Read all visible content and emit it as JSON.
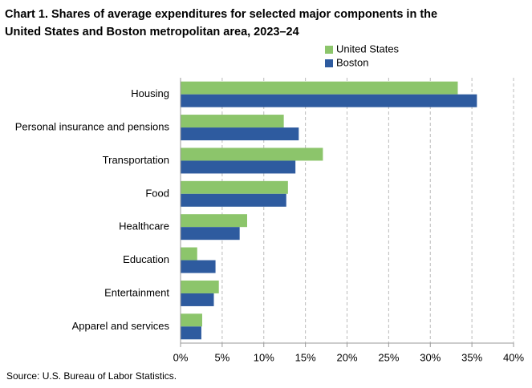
{
  "chart_data": {
    "type": "bar",
    "orientation": "horizontal",
    "title": [
      "Chart 1. Shares of average expenditures for selected major components in the",
      "United States and Boston metropolitan area, 2023–24"
    ],
    "categories": [
      "Housing",
      "Personal insurance and pensions",
      "Transportation",
      "Food",
      "Healthcare",
      "Education",
      "Entertainment",
      "Apparel and services"
    ],
    "series": [
      {
        "name": "United States",
        "color": "#8cc56b",
        "values": [
          33.3,
          12.4,
          17.1,
          12.9,
          8.0,
          2.0,
          4.6,
          2.6
        ]
      },
      {
        "name": "Boston",
        "color": "#2e5b9f",
        "values": [
          35.6,
          14.2,
          13.8,
          12.7,
          7.1,
          4.2,
          4.0,
          2.5
        ]
      }
    ],
    "xlim": [
      0,
      40
    ],
    "xticks": [
      {
        "value": 0,
        "label": "0%"
      },
      {
        "value": 5,
        "label": "5%"
      },
      {
        "value": 10,
        "label": "10%"
      },
      {
        "value": 15,
        "label": "15%"
      },
      {
        "value": 20,
        "label": "20%"
      },
      {
        "value": 25,
        "label": "25%"
      },
      {
        "value": 30,
        "label": "30%"
      },
      {
        "value": 35,
        "label": "35%"
      },
      {
        "value": 40,
        "label": "40%"
      }
    ],
    "grid": true,
    "legend": "top-right",
    "source": "Source: U.S. Bureau of Labor Statistics."
  }
}
